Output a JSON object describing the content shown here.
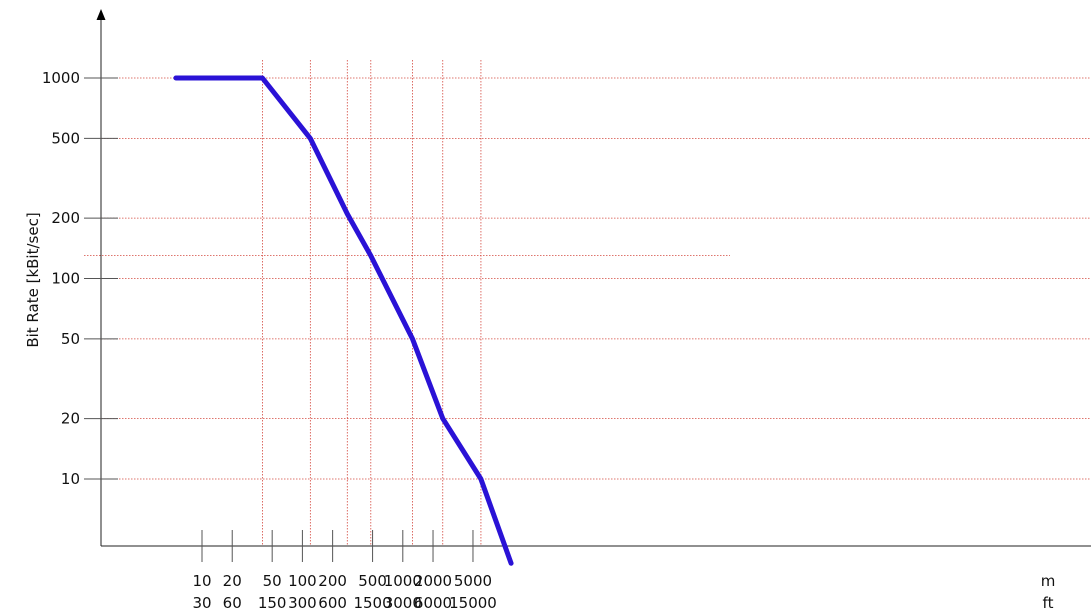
{
  "chart_data": {
    "type": "line",
    "title": "",
    "ylabel": "Bit Rate [kBit/sec]",
    "x_scale": "log",
    "y_scale": "log",
    "x_unit_primary": "m",
    "x_unit_secondary": "ft",
    "x_ticks": [
      {
        "m": 10,
        "top": "10",
        "bottom": "30"
      },
      {
        "m": 20,
        "top": "20",
        "bottom": "60"
      },
      {
        "m": 50,
        "top": "50",
        "bottom": "150"
      },
      {
        "m": 100,
        "top": "100",
        "bottom": "300"
      },
      {
        "m": 200,
        "top": "200",
        "bottom": "600"
      },
      {
        "m": 500,
        "top": "500",
        "bottom": "1500"
      },
      {
        "m": 1000,
        "top": "1000",
        "bottom": "3000"
      },
      {
        "m": 2000,
        "top": "2000",
        "bottom": "6000"
      },
      {
        "m": 5000,
        "top": "5000",
        "bottom": "15000"
      }
    ],
    "y_ticks": [
      {
        "value": 10,
        "label": "10"
      },
      {
        "value": 20,
        "label": "20"
      },
      {
        "value": 50,
        "label": "50"
      },
      {
        "value": 100,
        "label": "100"
      },
      {
        "value": 200,
        "label": "200"
      },
      {
        "value": 500,
        "label": "500"
      },
      {
        "value": 1000,
        "label": "1000"
      }
    ],
    "series": [
      {
        "color": "#2a12d6",
        "x": [
          5.5,
          40,
          120,
          280,
          480,
          1250,
          2500,
          6000,
          12000
        ],
        "y": [
          1000,
          1000,
          500,
          210,
          130,
          50,
          20,
          10,
          3.8
        ]
      }
    ],
    "reference_lines": {
      "color": "#d4493f",
      "x": [
        40,
        120,
        280,
        480,
        1250,
        2500,
        6000
      ],
      "y": [
        130
      ]
    },
    "grid": true,
    "legend": "none"
  }
}
